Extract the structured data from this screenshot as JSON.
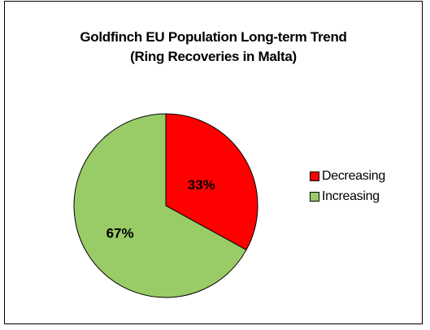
{
  "chart_data": {
    "type": "pie",
    "title": [
      "Goldfinch EU Population Long-term Trend",
      "(Ring Recoveries in Malta)"
    ],
    "categories": [
      "Decreasing",
      "Increasing"
    ],
    "values": [
      33,
      67
    ],
    "data_labels": [
      "33%",
      "67%"
    ],
    "colors": [
      "#ff0000",
      "#99cc66"
    ],
    "legend_position": "right"
  }
}
